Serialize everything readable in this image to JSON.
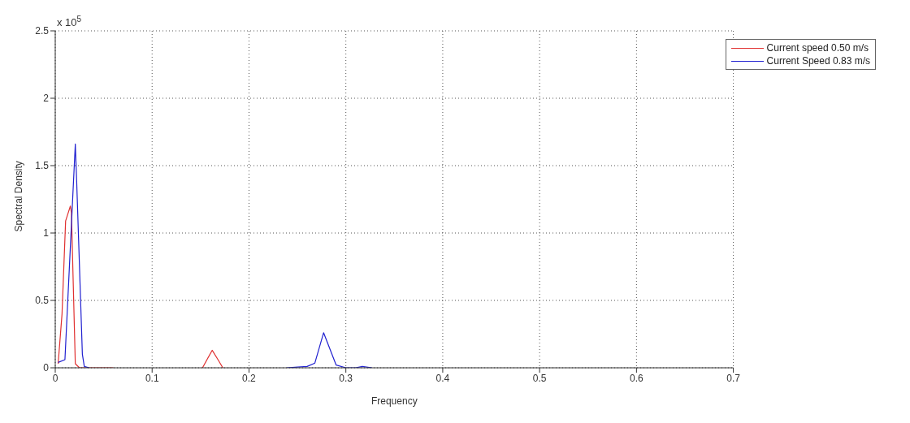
{
  "chart_data": {
    "type": "line",
    "xlabel": "Frequency",
    "ylabel": "Spectral Density",
    "annotations": [
      "x 10$^{5}$"
    ],
    "xlim": [
      0,
      0.7
    ],
    "xticks": [
      0,
      0.1,
      0.2,
      0.3,
      0.4,
      0.5,
      0.6,
      0.7
    ],
    "ylim": [
      0,
      2.5
    ],
    "yticks": [
      0,
      0.5,
      1,
      1.5,
      2,
      2.5
    ],
    "grid": true,
    "legend": "top right",
    "line_style": "solid",
    "marker": "none",
    "series": [
      {
        "name": "Current speed 0.50 m/s",
        "color": "#e03030",
        "x": [
          0.003,
          0.007,
          0.0107,
          0.0156,
          0.0167,
          0.0207,
          0.025,
          0.04,
          0.06,
          null,
          0.152,
          0.162,
          0.168,
          0.173
        ],
        "values": [
          0.03,
          0.4,
          1.09,
          1.2,
          1.15,
          0.03,
          0,
          0,
          0,
          null,
          0,
          0.13,
          0.06,
          0
        ]
      },
      {
        "name": "Current Speed 0.83 m/s",
        "color": "#2020d0",
        "x": [
          0.003,
          0.01,
          0.0207,
          0.022,
          0.028,
          0.03,
          0.035,
          null,
          0.239,
          0.25,
          0.26,
          0.268,
          0.277,
          0.29,
          0.3,
          0.31,
          0.317,
          0.327
        ],
        "values": [
          0.04,
          0.06,
          1.66,
          1.41,
          0.1,
          0.01,
          0,
          null,
          0,
          0.005,
          0.01,
          0.035,
          0.26,
          0.02,
          0,
          0,
          0.01,
          0
        ]
      }
    ]
  }
}
